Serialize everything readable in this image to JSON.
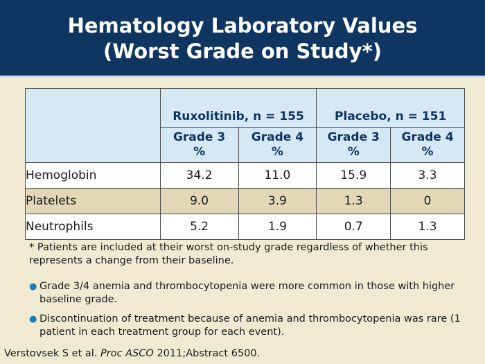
{
  "header": {
    "title_line1": "Hematology Laboratory Values",
    "title_line2": "(Worst Grade on Study*)"
  },
  "table": {
    "groups": [
      "Ruxolitinib, n = 155",
      "Placebo, n = 151"
    ],
    "subheaders": [
      {
        "grade": "Grade 3",
        "unit": "%"
      },
      {
        "grade": "Grade 4",
        "unit": "%"
      },
      {
        "grade": "Grade 3",
        "unit": "%"
      },
      {
        "grade": "Grade 4",
        "unit": "%"
      }
    ],
    "rows": [
      {
        "label": "Hemoglobin",
        "values": [
          "34.2",
          "11.0",
          "15.9",
          "3.3"
        ]
      },
      {
        "label": "Platelets",
        "values": [
          "9.0",
          "3.9",
          "1.3",
          "0"
        ]
      },
      {
        "label": "Neutrophils",
        "values": [
          "5.2",
          "1.9",
          "0.7",
          "1.3"
        ]
      }
    ]
  },
  "footnote": "* Patients are included at their worst on-study grade regardless of whether this represents a change from their baseline.",
  "bullets": [
    "Grade 3/4 anemia and thrombocytopenia were more common in those with higher baseline grade.",
    "Discontinuation of treatment because of anemia and thrombocytopenia was rare (1 patient in each treatment group for each event)."
  ],
  "citation": {
    "authors": "Verstovsek S et al. ",
    "journal": "Proc ASCO",
    "rest": " 2011;Abstract 6500."
  },
  "colors": {
    "header_bg": "#0f3561",
    "page_bg": "#f1ead3",
    "table_header_bg": "#d6e8f3",
    "row_alt_bg": "#e2d8b7",
    "bullet": "#1e7fb5"
  }
}
